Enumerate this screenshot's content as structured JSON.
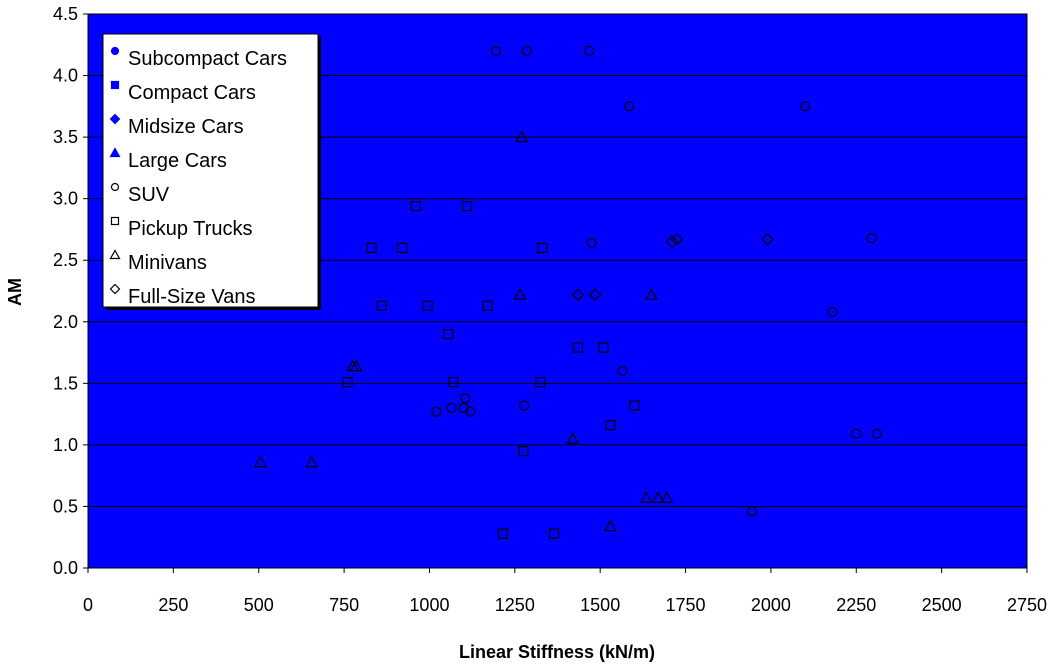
{
  "chart_data": {
    "type": "scatter",
    "xlabel": "Linear Stiffness (kN/m)",
    "ylabel": "AM",
    "xlim": [
      0,
      2750
    ],
    "ylim": [
      0,
      4.5
    ],
    "x_ticks": [
      "0",
      "250",
      "500",
      "750",
      "1000",
      "1250",
      "1500",
      "1750",
      "2000",
      "2250",
      "2500",
      "2750"
    ],
    "y_ticks": [
      "0.0",
      "0.5",
      "1.0",
      "1.5",
      "2.0",
      "2.5",
      "3.0",
      "3.5",
      "4.0",
      "4.5"
    ],
    "grid": "horizontal",
    "legend_position": "top-left",
    "plot_background": "#0000ff",
    "series": [
      {
        "name": "Subcompact Cars",
        "marker": "circle-filled",
        "points": []
      },
      {
        "name": "Compact Cars",
        "marker": "square-filled",
        "points": []
      },
      {
        "name": "Midsize Cars",
        "marker": "diamond-filled",
        "points": []
      },
      {
        "name": "Large Cars",
        "marker": "triangle-filled",
        "points": []
      },
      {
        "name": "SUV",
        "marker": "circle-open",
        "points": [
          [
            1195,
            4.2
          ],
          [
            1285,
            4.2
          ],
          [
            1468,
            4.2
          ],
          [
            1585,
            3.75
          ],
          [
            2100,
            3.75
          ],
          [
            1475,
            2.64
          ],
          [
            2295,
            2.68
          ],
          [
            2180,
            2.08
          ],
          [
            1565,
            1.6
          ],
          [
            1105,
            1.38
          ],
          [
            1020,
            1.27
          ],
          [
            1065,
            1.3
          ],
          [
            1100,
            1.3
          ],
          [
            1120,
            1.27
          ],
          [
            1278,
            1.32
          ],
          [
            2250,
            1.09
          ],
          [
            2310,
            1.09
          ],
          [
            1945,
            0.46
          ]
        ]
      },
      {
        "name": "Pickup Trucks",
        "marker": "square-open",
        "points": [
          [
            960,
            2.94
          ],
          [
            1110,
            2.94
          ],
          [
            830,
            2.6
          ],
          [
            920,
            2.6
          ],
          [
            1330,
            2.6
          ],
          [
            860,
            2.13
          ],
          [
            995,
            2.13
          ],
          [
            1170,
            2.13
          ],
          [
            1055,
            1.9
          ],
          [
            1435,
            1.79
          ],
          [
            1510,
            1.79
          ],
          [
            760,
            1.51
          ],
          [
            1070,
            1.51
          ],
          [
            1325,
            1.51
          ],
          [
            1600,
            1.32
          ],
          [
            1530,
            1.16
          ],
          [
            1275,
            0.95
          ],
          [
            1215,
            0.28
          ],
          [
            1365,
            0.28
          ]
        ]
      },
      {
        "name": "Minivans",
        "marker": "triangle-open",
        "points": [
          [
            1270,
            3.5
          ],
          [
            1265,
            2.22
          ],
          [
            1650,
            2.22
          ],
          [
            775,
            1.64
          ],
          [
            785,
            1.64
          ],
          [
            1420,
            1.05
          ],
          [
            505,
            0.86
          ],
          [
            655,
            0.86
          ],
          [
            1530,
            0.34
          ],
          [
            1635,
            0.57
          ],
          [
            1670,
            0.57
          ],
          [
            1695,
            0.57
          ]
        ]
      },
      {
        "name": "Full-Size Vans",
        "marker": "diamond-open",
        "points": [
          [
            1435,
            2.22
          ],
          [
            1485,
            2.22
          ],
          [
            1710,
            2.65
          ],
          [
            1725,
            2.67
          ],
          [
            1990,
            2.67
          ]
        ]
      }
    ]
  }
}
